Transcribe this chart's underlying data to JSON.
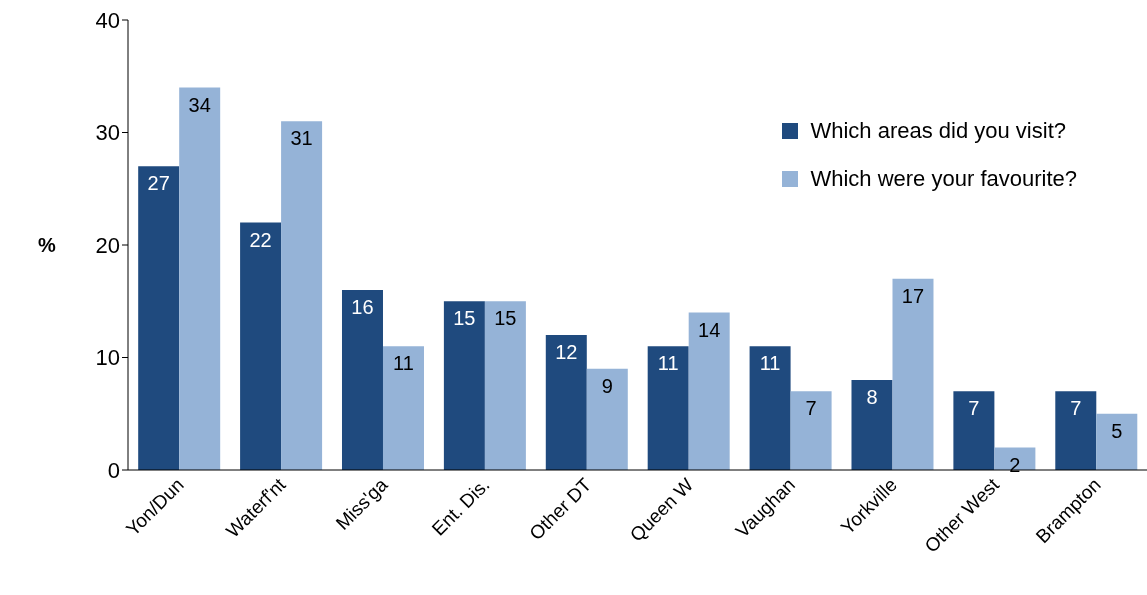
{
  "chart_data": {
    "type": "bar",
    "ylabel": "%",
    "categories": [
      "Yon/Dun",
      "Waterf'nt",
      "Miss'ga",
      "Ent. Dis.",
      "Other DT",
      "Queen W",
      "Vaughan",
      "Yorkville",
      "Other West",
      "Brampton"
    ],
    "series": [
      {
        "name": "Which areas did you visit?",
        "color": "#1f4a7e",
        "values": [
          27,
          22,
          16,
          15,
          12,
          11,
          11,
          8,
          7,
          7
        ]
      },
      {
        "name": "Which were your favourite?",
        "color": "#95b3d7",
        "values": [
          34,
          31,
          11,
          15,
          9,
          14,
          7,
          17,
          2,
          5
        ]
      }
    ],
    "ylim": [
      0,
      40
    ],
    "yticks": [
      0,
      10,
      20,
      30,
      40
    ],
    "legend": "top right",
    "data_labels": true
  }
}
